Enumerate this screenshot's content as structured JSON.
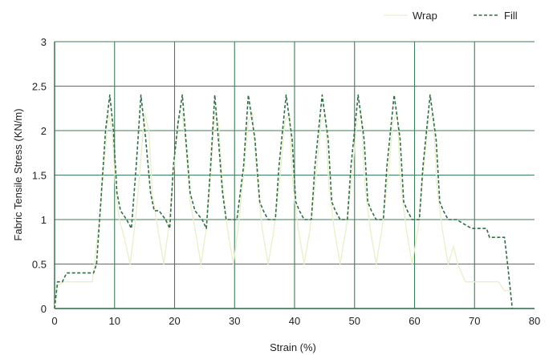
{
  "chart_data": {
    "type": "line",
    "xlabel": "Strain (%)",
    "ylabel": "Fabric Tensile Stress (KN/m)",
    "xlim": [
      0,
      80
    ],
    "ylim": [
      0,
      3
    ],
    "x_ticks": [
      0,
      10,
      20,
      30,
      40,
      50,
      60,
      70,
      80
    ],
    "y_ticks": [
      0,
      0.5,
      1,
      1.5,
      2,
      2.5,
      3
    ],
    "x_tick_labels": [
      "0",
      "10",
      "20",
      "30",
      "40",
      "50",
      "60",
      "70",
      "80"
    ],
    "y_tick_labels": [
      "0",
      "0.5",
      "1",
      "1.5",
      "2",
      "2.5",
      "3"
    ],
    "grid": true,
    "legend_position": "top-right",
    "series": [
      {
        "name": "Wrap",
        "color": "#e9efc8",
        "dash": "solid",
        "x": [
          0,
          0.4,
          1.0,
          1.5,
          2.5,
          3.5,
          4.5,
          5.5,
          6.3,
          6.8,
          7.5,
          8.2,
          9.0,
          9.6,
          10.2,
          10.8,
          11.6,
          12.6,
          13.5,
          14.3,
          15.0,
          15.7,
          16.3,
          17.2,
          18.2,
          19.0,
          19.8,
          20.6,
          21.3,
          21.9,
          22.6,
          23.4,
          24.4,
          25.3,
          26.0,
          26.7,
          27.3,
          28.0,
          28.8,
          29.8,
          30.6,
          31.5,
          32.3,
          33.0,
          33.7,
          34.6,
          35.6,
          36.6,
          37.6,
          38.4,
          39.1,
          39.7,
          40.6,
          41.6,
          42.6,
          43.6,
          44.4,
          45.1,
          45.7,
          46.6,
          47.6,
          48.6,
          49.6,
          50.4,
          51.1,
          51.7,
          52.6,
          53.6,
          54.6,
          55.6,
          56.4,
          57.1,
          57.7,
          58.6,
          59.6,
          60.6,
          61.4,
          62.3,
          63.1,
          63.7,
          64.6,
          65.6,
          66.5,
          67.2,
          68.5,
          70.0,
          72.0,
          74.0,
          75.0,
          75.5,
          76.0
        ],
        "y": [
          0,
          0.25,
          0.28,
          0.3,
          0.3,
          0.3,
          0.3,
          0.3,
          0.3,
          0.6,
          1.0,
          1.6,
          2.2,
          2.0,
          1.3,
          1.0,
          0.8,
          0.5,
          1.0,
          1.6,
          2.2,
          2.0,
          1.3,
          0.9,
          0.5,
          0.9,
          1.5,
          2.1,
          2.2,
          1.8,
          1.2,
          0.9,
          0.5,
          0.9,
          1.5,
          2.2,
          2.1,
          1.4,
          0.9,
          0.5,
          0.9,
          1.5,
          2.1,
          2.2,
          1.5,
          0.9,
          0.5,
          0.9,
          1.5,
          2.1,
          2.2,
          1.4,
          0.9,
          0.5,
          0.9,
          1.5,
          2.1,
          2.2,
          1.4,
          0.9,
          0.5,
          0.9,
          1.5,
          2.1,
          2.2,
          1.4,
          0.9,
          0.5,
          0.9,
          1.5,
          2.1,
          2.2,
          1.4,
          0.9,
          0.5,
          0.9,
          1.5,
          2.1,
          2.2,
          1.4,
          0.9,
          0.5,
          0.7,
          0.5,
          0.3,
          0.3,
          0.3,
          0.3,
          0.2,
          0.2,
          0.2
        ]
      },
      {
        "name": "Fill",
        "color": "#2f6e46",
        "dash": "dashed",
        "x": [
          0,
          0.5,
          1.3,
          2.0,
          6.5,
          7.0,
          7.7,
          8.5,
          9.2,
          9.8,
          10.4,
          11.0,
          12.0,
          12.8,
          13.6,
          14.4,
          15.2,
          16.0,
          16.6,
          17.4,
          18.5,
          19.2,
          19.8,
          20.6,
          21.3,
          22.0,
          22.6,
          23.4,
          24.6,
          25.3,
          26.0,
          26.7,
          27.3,
          28.0,
          28.6,
          29.6,
          30.4,
          31.5,
          32.3,
          33.4,
          34.2,
          34.8,
          35.6,
          36.8,
          37.4,
          38.6,
          39.6,
          40.2,
          40.8,
          41.6,
          42.8,
          43.4,
          44.6,
          45.6,
          46.2,
          46.8,
          47.6,
          48.8,
          49.4,
          50.6,
          51.6,
          52.2,
          52.8,
          53.6,
          54.8,
          55.4,
          56.6,
          57.6,
          58.2,
          58.8,
          59.6,
          60.8,
          61.4,
          62.6,
          63.6,
          64.2,
          64.8,
          65.6,
          67.0,
          69.5,
          72.0,
          72.5,
          75.0,
          75.5,
          76.3
        ],
        "y": [
          0,
          0.3,
          0.3,
          0.4,
          0.4,
          0.5,
          1.2,
          2.0,
          2.4,
          2.0,
          1.3,
          1.1,
          1.0,
          0.9,
          1.6,
          2.4,
          1.9,
          1.3,
          1.1,
          1.1,
          1.0,
          0.9,
          1.6,
          2.1,
          2.4,
          1.8,
          1.3,
          1.1,
          1.0,
          0.9,
          1.6,
          2.4,
          1.9,
          1.3,
          1.0,
          1.0,
          1.0,
          1.6,
          2.4,
          1.9,
          1.2,
          1.1,
          1.0,
          1.0,
          1.6,
          2.4,
          1.9,
          1.2,
          1.1,
          1.0,
          1.0,
          1.6,
          2.4,
          1.9,
          1.2,
          1.1,
          1.0,
          1.0,
          1.6,
          2.4,
          1.9,
          1.2,
          1.1,
          1.0,
          1.0,
          1.6,
          2.4,
          1.9,
          1.2,
          1.1,
          1.0,
          1.0,
          1.6,
          2.4,
          1.9,
          1.2,
          1.1,
          1.0,
          1.0,
          0.9,
          0.9,
          0.8,
          0.8,
          0.5,
          0.0
        ]
      }
    ]
  }
}
